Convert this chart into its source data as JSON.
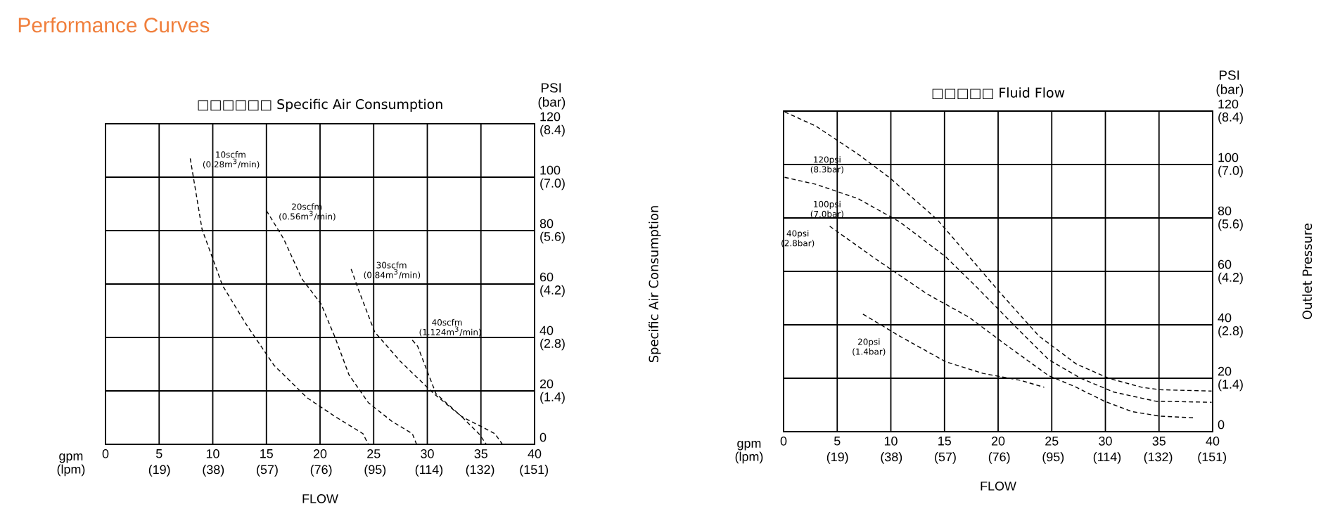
{
  "chart_data": [
    {
      "type": "line",
      "title": "Performance Curves",
      "subtitle": "□□□□□□ Specific Air Consumption",
      "xlabel": "FLOW",
      "ylabel": "PSI",
      "y2label": "(bar)",
      "annotations": [
        "gpm (lpm)",
        "Specific Air Consumption"
      ],
      "xlim": [
        0,
        40
      ],
      "ylim": [
        0,
        120
      ],
      "xticks": [
        0,
        5,
        10,
        15,
        20,
        25,
        30,
        35,
        40
      ],
      "x2lim": [
        0,
        151.2
      ],
      "x2ticks": [
        {
          "value": 19,
          "label": "(19)"
        },
        {
          "value": 38,
          "label": "(38)"
        },
        {
          "value": 57,
          "label": "(57)"
        },
        {
          "value": 76,
          "label": "(76)"
        },
        {
          "value": 95,
          "label": "(95)"
        },
        {
          "value": 114,
          "label": "(114)"
        },
        {
          "value": 132,
          "label": "(132)"
        },
        {
          "value": 151,
          "label": "(151)"
        }
      ],
      "yticks": [
        0,
        20,
        40,
        60,
        80,
        100,
        120
      ],
      "y2lim": [
        0,
        8.4
      ],
      "y2ticks": [
        {
          "value": 1.4,
          "label": "(1.4)"
        },
        {
          "value": 2.8,
          "label": "(2.8)"
        },
        {
          "value": 4.2,
          "label": "(4.2)"
        },
        {
          "value": 5.6,
          "label": "(5.6)"
        },
        {
          "value": 7.0,
          "label": "(7.0)"
        },
        {
          "value": 8.4,
          "label": "(8.4)"
        }
      ],
      "grid": true,
      "line_style": "dashed",
      "series": [
        {
          "name": "10scfm (0.28m$^{3}$/min)",
          "color": "#000000",
          "x": [
            7.9,
            9.0,
            10.9,
            13.1,
            15.7,
            18.8,
            21.4,
            24.0,
            24.5
          ],
          "values": [
            107,
            80.5,
            59.5,
            45,
            29.6,
            17.4,
            10.4,
            4,
            0
          ]
        },
        {
          "name": "20scfm (0.56m$^{3}$/min)",
          "color": "#000000",
          "x": [
            15.0,
            16.6,
            18.3,
            20.1,
            21.4,
            22.7,
            24.5,
            26.7,
            28.6,
            29.0
          ],
          "values": [
            87.5,
            77,
            62,
            52.5,
            40,
            26,
            15.6,
            8.6,
            4,
            0
          ]
        },
        {
          "name": "30scfm (0.84m$^{3}$/min)",
          "color": "#000000",
          "x": [
            22.9,
            23.6,
            25.1,
            27.5,
            30.6,
            33.2,
            34.8,
            35.5
          ],
          "values": [
            65.6,
            57.7,
            42,
            31,
            19,
            10.4,
            4,
            0
          ]
        },
        {
          "name": "40scfm (1.124m$^{3}$/min)",
          "color": "#000000",
          "x": [
            28.6,
            29.1,
            30.8,
            33.2,
            36.3,
            37.0
          ],
          "values": [
            39,
            36.7,
            19,
            10.4,
            4,
            0
          ]
        }
      ]
    },
    {
      "type": "line",
      "subtitle": "□□□□□ Fluid Flow",
      "xlabel": "FLOW",
      "ylabel": "PSI",
      "y2label": "(bar)",
      "annotations": [
        "gpm (lpm)",
        "Outlet Pressure"
      ],
      "xlim": [
        0,
        40
      ],
      "ylim": [
        0,
        120
      ],
      "xticks": [
        0,
        5,
        10,
        15,
        20,
        25,
        30,
        35,
        40
      ],
      "x2lim": [
        0,
        151.2
      ],
      "x2ticks": [
        {
          "value": 19,
          "label": "(19)"
        },
        {
          "value": 38,
          "label": "(38)"
        },
        {
          "value": 57,
          "label": "(57)"
        },
        {
          "value": 76,
          "label": "(76)"
        },
        {
          "value": 95,
          "label": "(95)"
        },
        {
          "value": 114,
          "label": "(114)"
        },
        {
          "value": 132,
          "label": "(132)"
        },
        {
          "value": 151,
          "label": "(151)"
        }
      ],
      "yticks": [
        0,
        20,
        40,
        60,
        80,
        100,
        120
      ],
      "y2lim": [
        0,
        8.4
      ],
      "y2ticks": [
        {
          "value": 1.4,
          "label": "(1.4)"
        },
        {
          "value": 2.8,
          "label": "(2.8)"
        },
        {
          "value": 4.2,
          "label": "(4.2)"
        },
        {
          "value": 5.6,
          "label": "(5.6)"
        },
        {
          "value": 7.0,
          "label": "(7.0)"
        },
        {
          "value": 8.4,
          "label": "(8.4)"
        }
      ],
      "grid": true,
      "line_style": "dashed",
      "series": [
        {
          "name": "120psi (8.3bar)",
          "color": "#000000",
          "x": [
            0.1,
            3.0,
            6.9,
            9.9,
            14.3,
            17.3,
            20.3,
            23.8,
            27.3,
            30.3,
            33.4,
            35.1,
            39.9
          ],
          "values": [
            119.7,
            114.4,
            104,
            95,
            79.5,
            65.5,
            51.5,
            35.8,
            25.3,
            20,
            16.6,
            15.7,
            15.2
          ]
        },
        {
          "name": "100psi (7.0bar)",
          "color": "#000000",
          "x": [
            0.1,
            3.0,
            6.9,
            10.8,
            15.1,
            18.2,
            21.2,
            24.7,
            27.7,
            30.8,
            34.7,
            39.9
          ],
          "values": [
            95.2,
            92.6,
            87.3,
            78.6,
            65.5,
            53.3,
            41,
            27,
            20,
            14.8,
            11.4,
            11
          ]
        },
        {
          "name": "40psi (2.8bar)",
          "color": "#000000",
          "x": [
            4.3,
            8.6,
            13.4,
            17.3,
            20.8,
            24.7,
            27.3,
            29.9,
            32.5,
            35.1,
            38.2
          ],
          "values": [
            76.9,
            64.6,
            51.5,
            42.8,
            32.3,
            21,
            16.6,
            11.4,
            7.5,
            5.8,
            5.2
          ]
        },
        {
          "name": "20psi (1.4bar)",
          "color": "#000000",
          "x": [
            7.4,
            10.8,
            15.1,
            18.6,
            22.1,
            24.3
          ],
          "values": [
            44,
            35.8,
            26.2,
            21.8,
            19.2,
            16.6
          ]
        }
      ]
    }
  ]
}
